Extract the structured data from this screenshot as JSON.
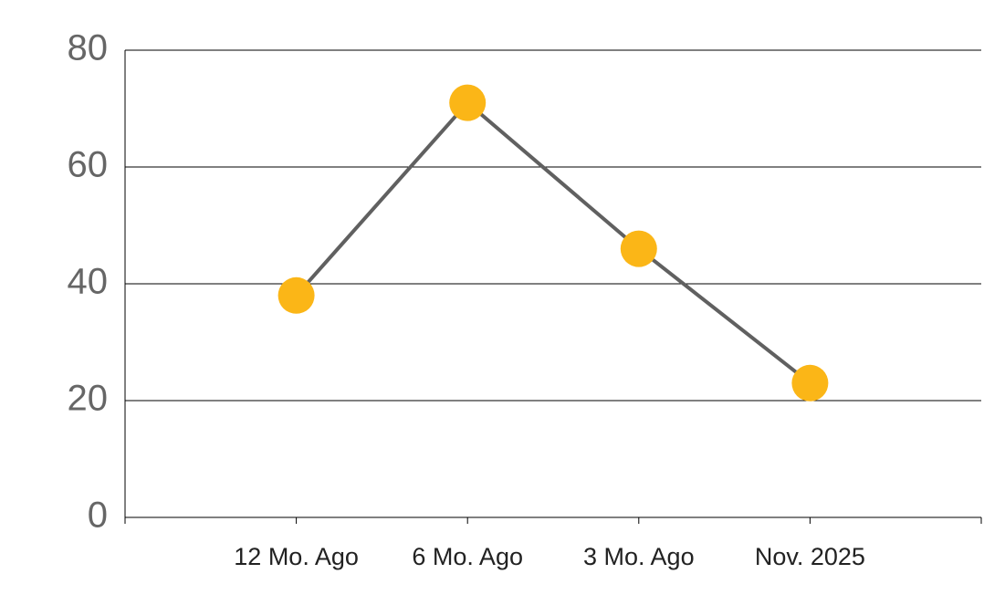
{
  "chart_data": {
    "type": "line",
    "categories": [
      "12 Mo. Ago",
      "6 Mo. Ago",
      "3 Mo. Ago",
      "Nov. 2025"
    ],
    "series": [
      {
        "name": null,
        "color": "#606060",
        "marker_color": "#fbb617",
        "values": [
          38,
          71,
          46,
          23
        ]
      }
    ],
    "ylim": [
      0,
      80
    ],
    "yticks": [
      0,
      20,
      40,
      60,
      80
    ],
    "grid": true
  }
}
